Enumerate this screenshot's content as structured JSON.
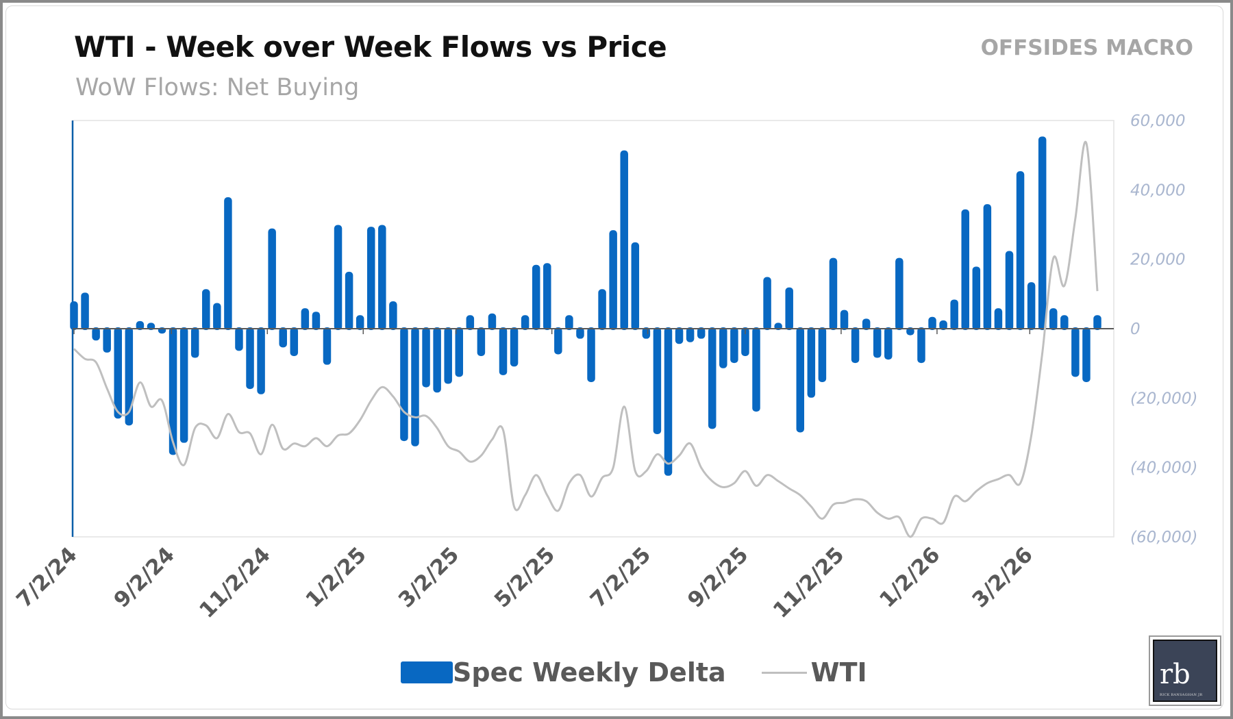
{
  "header": {
    "title": "WTI - Week over Week Flows vs Price",
    "subtitle": "WoW Flows: Net Buying",
    "brand": "OFFSIDES MACRO"
  },
  "logo": {
    "text": "rb",
    "subtext": "RICK BANSAGHAN JR"
  },
  "colors": {
    "bars": "#0868c2",
    "wti_line": "#bfbfbf",
    "axis_labels": "#a9b6cf",
    "date_labels": "#595959"
  },
  "chart_data": {
    "type": "bar+line",
    "title": "WTI - Week over Week Flows vs Price",
    "subtitle": "WoW Flows: Net Buying",
    "y_ticks": [
      "60,000",
      "40,000",
      "20,000",
      "0",
      "(20,000)",
      "(40,000)",
      "(60,000)"
    ],
    "ylim": [
      -60000,
      60000
    ],
    "y2_hidden": true,
    "y2lim": [
      55,
      117
    ],
    "x_ticks": [
      {
        "date": "2024-07-02",
        "label": "7/2/24"
      },
      {
        "date": "2024-09-02",
        "label": "9/2/24"
      },
      {
        "date": "2024-11-02",
        "label": "11/2/24"
      },
      {
        "date": "2025-01-02",
        "label": "1/2/25"
      },
      {
        "date": "2025-03-02",
        "label": "3/2/25"
      },
      {
        "date": "2025-05-02",
        "label": "5/2/25"
      },
      {
        "date": "2025-07-02",
        "label": "7/2/25"
      },
      {
        "date": "2025-09-02",
        "label": "9/2/25"
      },
      {
        "date": "2025-11-02",
        "label": "11/2/25"
      },
      {
        "date": "2026-01-02",
        "label": "1/2/26"
      },
      {
        "date": "2026-03-02",
        "label": "3/2/26"
      }
    ],
    "legend": {
      "position": "bottom",
      "entries": [
        "Spec Weekly Delta",
        "WTI"
      ]
    },
    "dates": [
      "2024-07-02",
      "2024-07-09",
      "2024-07-16",
      "2024-07-23",
      "2024-07-30",
      "2024-08-06",
      "2024-08-13",
      "2024-08-20",
      "2024-08-27",
      "2024-09-03",
      "2024-09-10",
      "2024-09-17",
      "2024-09-24",
      "2024-10-01",
      "2024-10-08",
      "2024-10-15",
      "2024-10-22",
      "2024-10-29",
      "2024-11-05",
      "2024-11-12",
      "2024-11-19",
      "2024-11-26",
      "2024-12-03",
      "2024-12-10",
      "2024-12-17",
      "2024-12-24",
      "2024-12-31",
      "2025-01-07",
      "2025-01-14",
      "2025-01-21",
      "2025-01-28",
      "2025-02-04",
      "2025-02-11",
      "2025-02-18",
      "2025-02-25",
      "2025-03-04",
      "2025-03-11",
      "2025-03-18",
      "2025-03-25",
      "2025-04-01",
      "2025-04-08",
      "2025-04-15",
      "2025-04-22",
      "2025-04-29",
      "2025-05-06",
      "2025-05-13",
      "2025-05-20",
      "2025-05-27",
      "2025-06-03",
      "2025-06-10",
      "2025-06-17",
      "2025-06-24",
      "2025-07-01",
      "2025-07-08",
      "2025-07-15",
      "2025-07-22",
      "2025-07-29",
      "2025-08-05",
      "2025-08-12",
      "2025-08-19",
      "2025-08-26",
      "2025-09-02",
      "2025-09-09",
      "2025-09-16",
      "2025-09-23",
      "2025-09-30",
      "2025-10-07",
      "2025-10-14",
      "2025-10-21",
      "2025-10-28",
      "2025-11-04",
      "2025-11-11",
      "2025-11-18",
      "2025-11-25",
      "2025-12-02",
      "2025-12-09",
      "2025-12-16",
      "2025-12-23",
      "2025-12-30",
      "2026-01-06",
      "2026-01-13",
      "2026-01-20",
      "2026-01-27",
      "2026-02-03",
      "2026-02-10",
      "2026-02-17",
      "2026-02-24",
      "2026-03-03",
      "2026-03-10",
      "2026-03-17",
      "2026-03-24",
      "2026-03-31",
      "2026-04-07",
      "2026-04-14"
    ],
    "series": [
      {
        "name": "Spec Weekly Delta",
        "type": "bar",
        "axis": "primary",
        "values": [
          7500,
          10000,
          -3000,
          -6500,
          -25500,
          -27500,
          1800,
          1300,
          -1000,
          -36000,
          -32500,
          -8000,
          11000,
          7000,
          37500,
          -6000,
          -17000,
          -18500,
          28500,
          -5000,
          -7500,
          5500,
          4500,
          -10000,
          29500,
          16000,
          3500,
          29000,
          29500,
          7500,
          -32000,
          -33500,
          -16500,
          -18000,
          -15500,
          -13500,
          3500,
          -7500,
          4000,
          -13000,
          -10500,
          3500,
          18000,
          18500,
          -7000,
          3500,
          -2500,
          -15000,
          11000,
          28000,
          51000,
          24500,
          -2500,
          -30000,
          -42000,
          -4000,
          -3500,
          -2500,
          -28500,
          -11000,
          -9500,
          -7500,
          -23500,
          14500,
          1300,
          11500,
          -29500,
          -19500,
          -15000,
          20000,
          5000,
          -9500,
          2500,
          -8000,
          -8500,
          20000,
          -1500,
          -9500,
          3000,
          2000,
          8000,
          34000,
          17500,
          35500,
          5500,
          22000,
          45000,
          13000,
          55000,
          5500,
          3500,
          -13500,
          -15000,
          3500
        ]
      },
      {
        "name": "WTI",
        "type": "line",
        "axis": "secondary",
        "values": [
          83.0,
          81.5,
          81.0,
          77.1,
          73.6,
          73.6,
          78.0,
          74.4,
          75.3,
          69.1,
          65.7,
          71.2,
          71.6,
          69.7,
          73.3,
          70.6,
          70.4,
          67.3,
          71.7,
          68.1,
          68.9,
          68.5,
          69.7,
          68.5,
          70.1,
          70.4,
          72.4,
          75.3,
          77.3,
          75.9,
          73.6,
          72.8,
          73.0,
          71.2,
          68.5,
          67.7,
          66.2,
          67.1,
          69.5,
          70.9,
          59.5,
          61.2,
          64.2,
          61.2,
          58.9,
          63.0,
          64.2,
          61.0,
          63.8,
          65.3,
          74.4,
          64.8,
          64.8,
          67.3,
          65.9,
          67.1,
          68.9,
          65.3,
          63.3,
          62.4,
          63.0,
          64.8,
          62.6,
          64.2,
          63.3,
          62.2,
          61.2,
          59.5,
          57.7,
          59.8,
          60.1,
          60.6,
          60.3,
          58.6,
          57.7,
          57.9,
          55.0,
          57.7,
          57.7,
          57.1,
          61.0,
          60.3,
          61.8,
          63.0,
          63.6,
          64.2,
          63.0,
          70.1,
          82.4,
          96.5,
          92.4,
          102.4,
          113.6,
          91.6
        ]
      }
    ]
  }
}
